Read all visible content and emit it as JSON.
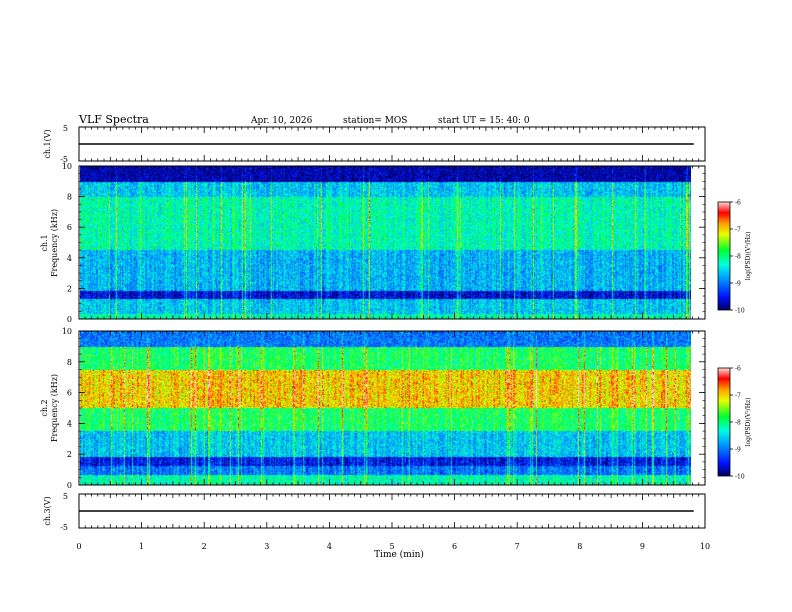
{
  "header": {
    "title": "VLF Spectra",
    "date": "Apr. 10, 2026",
    "station": "station= MOS",
    "start": "start  UT =   15: 40: 0"
  },
  "chart_data": [
    {
      "type": "line",
      "name": "ch1-waveform",
      "ylabel": "ch.1(V)",
      "ylim": [
        -5,
        5
      ],
      "yticks": [
        "5",
        "-5"
      ],
      "x_unit": "min",
      "xlim": [
        0,
        10
      ],
      "approx_level": 0,
      "data_extent_x": [
        0,
        9.82
      ]
    },
    {
      "type": "heatmap",
      "name": "ch1-spectrogram",
      "ylabel": "ch.1 Frequency (kHz)",
      "ylabel_lines": [
        "ch.1",
        "Frequency (kHz)"
      ],
      "ylim": [
        0,
        10
      ],
      "yticks": [
        0,
        2,
        4,
        6,
        8,
        10
      ],
      "xlim": [
        0,
        10
      ],
      "data_extent_x": [
        0,
        9.82
      ],
      "colorbar": {
        "label": "log(PSD)(V²/Hz)",
        "min": -10,
        "max": -6,
        "ticks": [
          -6,
          -7,
          -8,
          -9,
          -10
        ]
      },
      "bands_log_psd": [
        {
          "f": [
            0.0,
            0.3
          ],
          "level": -8.2
        },
        {
          "f": [
            0.3,
            1.3
          ],
          "level": -8.6
        },
        {
          "f": [
            1.3,
            1.8
          ],
          "level": -9.6
        },
        {
          "f": [
            1.8,
            4.5
          ],
          "level": -8.7
        },
        {
          "f": [
            4.5,
            8.0
          ],
          "level": -8.2
        },
        {
          "f": [
            8.0,
            9.0
          ],
          "level": -8.6
        },
        {
          "f": [
            9.0,
            10.0
          ],
          "level": -9.8
        }
      ]
    },
    {
      "type": "heatmap",
      "name": "ch2-spectrogram",
      "ylabel": "ch.2 Frequency (kHz)",
      "ylabel_lines": [
        "ch.2",
        "Frequency (kHz)"
      ],
      "ylim": [
        0,
        10
      ],
      "yticks": [
        0,
        2,
        4,
        6,
        8,
        10
      ],
      "xlim": [
        0,
        10
      ],
      "data_extent_x": [
        0,
        9.82
      ],
      "colorbar": {
        "label": "log(PSD)(V²/Hz)",
        "min": -10,
        "max": -6,
        "ticks": [
          -6,
          -7,
          -8,
          -9,
          -10
        ]
      },
      "bands_log_psd": [
        {
          "f": [
            0.0,
            0.6
          ],
          "level": -8.2
        },
        {
          "f": [
            0.6,
            1.2
          ],
          "level": -9.0
        },
        {
          "f": [
            1.2,
            1.8
          ],
          "level": -9.5
        },
        {
          "f": [
            1.8,
            3.5
          ],
          "level": -8.6
        },
        {
          "f": [
            3.5,
            5.0
          ],
          "level": -7.9
        },
        {
          "f": [
            5.0,
            7.5
          ],
          "level": -7.0
        },
        {
          "f": [
            7.5,
            9.0
          ],
          "level": -7.9
        },
        {
          "f": [
            9.0,
            10.0
          ],
          "level": -9.0
        }
      ]
    },
    {
      "type": "line",
      "name": "ch3-waveform",
      "ylabel": "ch.3(V)",
      "ylim": [
        -5,
        5
      ],
      "yticks": [
        "5",
        "-5"
      ],
      "x_unit": "min",
      "xlim": [
        0,
        10
      ],
      "approx_level": 0,
      "data_extent_x": [
        0,
        9.82
      ]
    }
  ],
  "x_axis": {
    "label": "Time (min)",
    "ticks": [
      0,
      1,
      2,
      3,
      4,
      5,
      6,
      7,
      8,
      9,
      10
    ]
  }
}
